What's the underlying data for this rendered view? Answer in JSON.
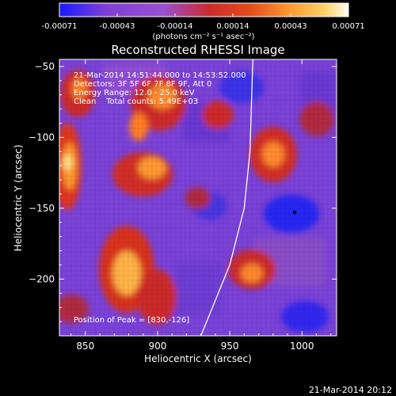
{
  "colorbar": {
    "ticks": [
      "-0.00071",
      "-0.00043",
      "-0.00014",
      "0.00014",
      "0.00043",
      "0.00071"
    ],
    "units": "(photons cm⁻² s⁻¹ asec⁻²)",
    "stops": [
      "#1a1aff",
      "#7f3fd6",
      "#9a4fd0",
      "#cc2a2a",
      "#e34c1a",
      "#ff9a33",
      "#ffd36b",
      "#fffef6"
    ]
  },
  "title": "Reconstructed RHESSI Image",
  "annotations": {
    "time_range": "21-Mar-2014 14:51:44.000 to 14:53:52.000",
    "detectors": "Detectors: 3F 5F 6F 7F 8F 9F, Att 0",
    "energy": "Energy Range: 12.0 - 25.0 keV",
    "clean": "Clean    Total counts: 5.49E+03",
    "peak": "Position of Peak = [830,-126]"
  },
  "axes": {
    "xlabel": "Heliocentric X (arcsec)",
    "ylabel": "Heliocentric Y (arcsec)",
    "xticks": [
      850,
      900,
      950,
      1000
    ],
    "yticks": [
      -50,
      -100,
      -150,
      -200
    ],
    "xlim": [
      832,
      1024
    ],
    "ylim": [
      -240,
      -45
    ]
  },
  "limb_curve": [
    [
      930,
      -240
    ],
    [
      950,
      -190
    ],
    [
      960,
      -150
    ],
    [
      964,
      -110
    ],
    [
      966,
      -45
    ]
  ],
  "footer": "21-Mar-2014 20:12"
}
